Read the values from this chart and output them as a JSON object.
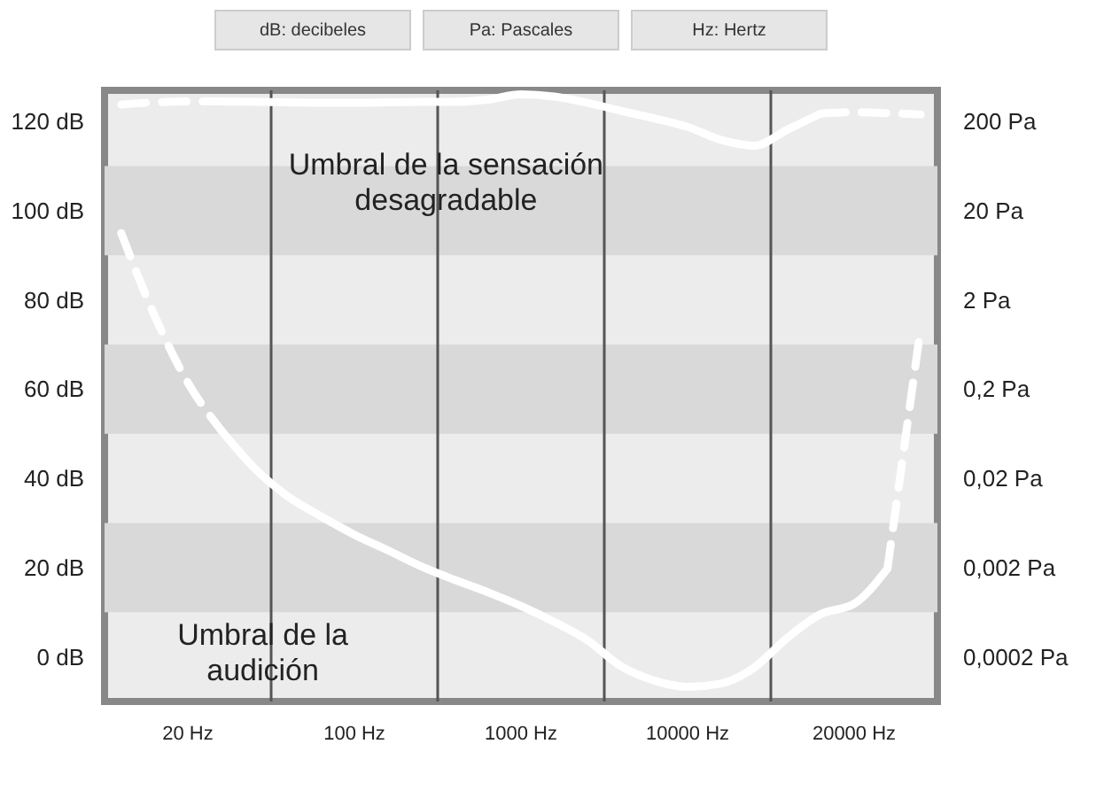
{
  "chart_data": {
    "type": "line",
    "annotations": [
      "dB: decibeles",
      "Pa: Pascales",
      "Hz: Hertz",
      "Umbral de la sensación\ndesagradable",
      "Umbral de la\naudición"
    ],
    "categories": [
      null,
      null,
      "20 Hz",
      null,
      null,
      null,
      null,
      "100 Hz",
      null,
      null,
      null,
      null,
      "1000 Hz",
      null,
      null,
      null,
      null,
      "10000 Hz",
      null,
      null,
      null,
      null,
      "20000 Hz",
      null,
      null
    ],
    "ylim": [
      -10,
      127
    ],
    "yticks": [
      {
        "value": 0,
        "label": "0 dB"
      },
      {
        "value": 20,
        "label": "20 dB"
      },
      {
        "value": 40,
        "label": "40 dB"
      },
      {
        "value": 60,
        "label": "60 dB"
      },
      {
        "value": 80,
        "label": "80 dB"
      },
      {
        "value": 100,
        "label": "100 dB"
      },
      {
        "value": 120,
        "label": "120 dB"
      }
    ],
    "y2lim": [
      6.32e-05,
      447
    ],
    "y2ticks": [
      {
        "value": 0.0002,
        "label": "0,0002 Pa"
      },
      {
        "value": 0.002,
        "label": "0,002 Pa"
      },
      {
        "value": 0.02,
        "label": "0,02 Pa"
      },
      {
        "value": 0.2,
        "label": "0,2 Pa"
      },
      {
        "value": 2,
        "label": "2 Pa"
      },
      {
        "value": 20,
        "label": "20 Pa"
      },
      {
        "value": 200,
        "label": "200 Pa"
      }
    ],
    "log": "y2",
    "grid": false,
    "legend": false,
    "bands": [
      {
        "axis": "y",
        "from": 90,
        "to": 110,
        "color": "#d9d9d9"
      },
      {
        "axis": "y",
        "from": 50,
        "to": 70,
        "color": "#d9d9d9"
      },
      {
        "axis": "y",
        "from": 10,
        "to": 30,
        "color": "#d9d9d9"
      }
    ],
    "series": [
      {
        "color": "#ffffff",
        "line_style": "dashed",
        "values": [
          123.8,
          124.3,
          124.5,
          124.5,
          null,
          null,
          null,
          null,
          null,
          null,
          null,
          null,
          null,
          null,
          null,
          null,
          null,
          null,
          null,
          null,
          null,
          null,
          null,
          null,
          null
        ]
      },
      {
        "color": "#ffffff",
        "line_style": "solid",
        "values": [
          null,
          null,
          null,
          124.5,
          124.4,
          124.3,
          124.2,
          124.2,
          124.3,
          124.4,
          124.4,
          124.9,
          126.1,
          125.6,
          124.2,
          122.4,
          120.7,
          118.8,
          115.9,
          114.6,
          118.2,
          121.8,
          null,
          null,
          null
        ]
      },
      {
        "color": "#ffffff",
        "line_style": "dashed",
        "values": [
          null,
          null,
          null,
          null,
          null,
          null,
          null,
          null,
          null,
          null,
          null,
          null,
          null,
          null,
          null,
          null,
          null,
          null,
          null,
          null,
          null,
          121.8,
          122.1,
          121.9,
          121.6
        ]
      },
      {
        "color": "#ffffff",
        "line_style": "dashed",
        "values": [
          95,
          76.5,
          61.5,
          50.8,
          null,
          null,
          null,
          null,
          null,
          null,
          null,
          null,
          null,
          null,
          null,
          null,
          null,
          null,
          null,
          null,
          null,
          null,
          null,
          null,
          null
        ]
      },
      {
        "color": "#ffffff",
        "line_style": "solid",
        "values": [
          null,
          null,
          null,
          50.8,
          42.3,
          36,
          31.5,
          27.4,
          23.9,
          20.3,
          17.3,
          14.5,
          11.4,
          7.8,
          3.7,
          -2.1,
          -5.3,
          -6.7,
          -6,
          -2.4,
          4.3,
          9.6,
          11.9,
          19.8,
          null
        ]
      },
      {
        "color": "#ffffff",
        "line_style": "dashed",
        "values": [
          null,
          null,
          null,
          null,
          null,
          null,
          null,
          null,
          null,
          null,
          null,
          null,
          null,
          null,
          null,
          null,
          null,
          null,
          null,
          null,
          null,
          null,
          null,
          19.8,
          74
        ]
      }
    ]
  }
}
